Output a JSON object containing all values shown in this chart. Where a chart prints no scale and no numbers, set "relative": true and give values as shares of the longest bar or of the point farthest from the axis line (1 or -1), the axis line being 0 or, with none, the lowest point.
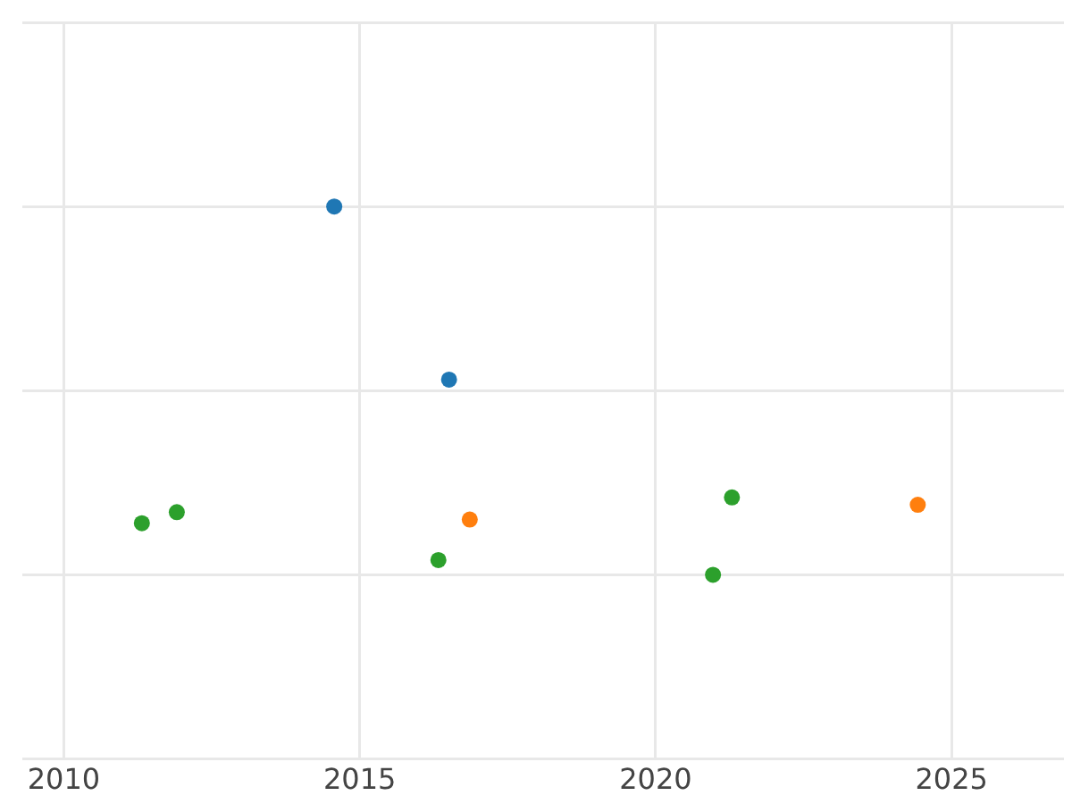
{
  "chart_data": {
    "type": "scatter",
    "relative": true,
    "xlim": [
      2009.3,
      2026.9
    ],
    "xticks": [
      2010,
      2015,
      2020,
      2025
    ],
    "grid": true,
    "marker": "circle",
    "series": [
      {
        "color": "#1f77b4",
        "x": [
          2014.57,
          2016.51
        ],
        "values": [
          1,
          0.53
        ]
      },
      {
        "color": "#ff7f0e",
        "x": [
          2016.86,
          2024.43
        ],
        "values": [
          0.15,
          0.19
        ]
      },
      {
        "color": "#2ca02c",
        "x": [
          2011.32,
          2011.91,
          2016.33,
          2020.97,
          2021.29
        ],
        "values": [
          0.14,
          0.17,
          0.04,
          0,
          0.21
        ]
      }
    ]
  }
}
